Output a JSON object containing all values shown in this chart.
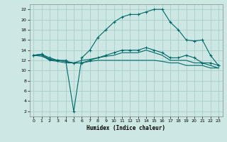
{
  "title": "",
  "xlabel": "Humidex (Indice chaleur)",
  "ylabel": "",
  "bg_color": "#cde8e4",
  "grid_color": "#a8d0cc",
  "line_color": "#006868",
  "xlim": [
    -0.5,
    23.5
  ],
  "ylim": [
    1,
    23
  ],
  "xticks": [
    0,
    1,
    2,
    3,
    4,
    5,
    6,
    7,
    8,
    9,
    10,
    11,
    12,
    13,
    14,
    15,
    16,
    17,
    18,
    19,
    20,
    21,
    22,
    23
  ],
  "yticks": [
    2,
    4,
    6,
    8,
    10,
    12,
    14,
    16,
    18,
    20,
    22
  ],
  "line1_x": [
    0,
    1,
    2,
    3,
    4,
    5,
    6,
    7,
    8,
    9,
    10,
    11,
    12,
    13,
    14,
    15,
    16,
    17,
    18,
    19,
    20,
    21,
    22,
    23
  ],
  "line1_y": [
    13,
    13.2,
    12.5,
    12,
    12,
    2,
    12.5,
    14,
    16.5,
    18,
    19.5,
    20.5,
    21,
    21,
    21.5,
    22,
    22,
    19.5,
    18,
    16,
    15.8,
    16,
    13,
    11
  ],
  "line2_x": [
    0,
    1,
    2,
    3,
    4,
    5,
    6,
    7,
    8,
    9,
    10,
    11,
    12,
    13,
    14,
    15,
    16,
    17,
    18,
    19,
    20,
    21,
    22,
    23
  ],
  "line2_y": [
    13,
    13.2,
    12.2,
    12,
    11.8,
    11.5,
    11.5,
    12,
    12.5,
    13,
    13.5,
    14,
    14,
    14,
    14.5,
    14,
    13.5,
    12.5,
    12.5,
    13,
    12.5,
    11.5,
    11.5,
    11
  ],
  "line3_x": [
    0,
    1,
    2,
    3,
    4,
    5,
    6,
    7,
    8,
    9,
    10,
    11,
    12,
    13,
    14,
    15,
    16,
    17,
    18,
    19,
    20,
    21,
    22,
    23
  ],
  "line3_y": [
    13,
    13,
    12,
    11.8,
    11.5,
    11.5,
    12,
    12.2,
    12.5,
    12.8,
    13,
    13.5,
    13.5,
    13.5,
    14,
    13.5,
    13,
    12,
    12,
    12,
    11.5,
    11.5,
    11,
    10.5
  ],
  "line4_x": [
    0,
    1,
    2,
    3,
    4,
    5,
    6,
    7,
    8,
    9,
    10,
    11,
    12,
    13,
    14,
    15,
    16,
    17,
    18,
    19,
    20,
    21,
    22,
    23
  ],
  "line4_y": [
    13,
    12.8,
    12.2,
    12,
    11.8,
    11.5,
    11.5,
    11.8,
    12,
    12,
    12,
    12,
    12,
    12,
    12,
    12,
    11.8,
    11.5,
    11.5,
    11,
    11,
    11,
    10.5,
    10.5
  ]
}
